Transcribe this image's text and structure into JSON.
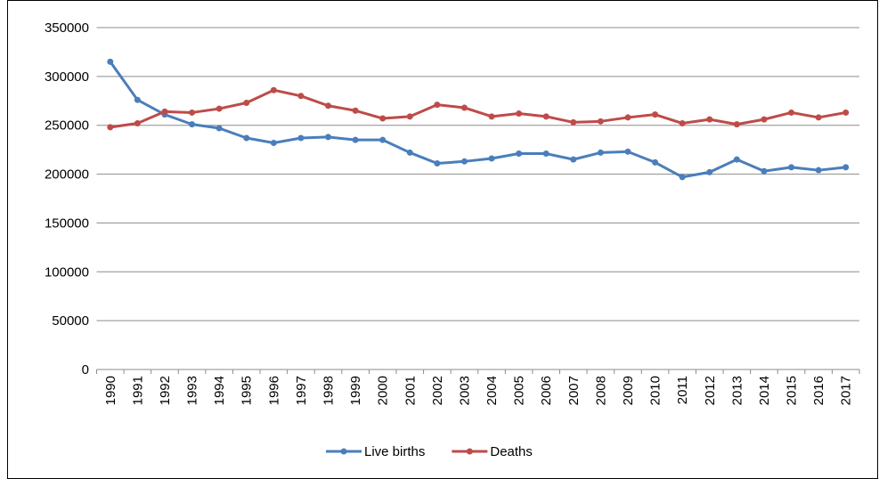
{
  "chart_data": {
    "type": "line",
    "categories": [
      "1990",
      "1991",
      "1992",
      "1993",
      "1994",
      "1995",
      "1996",
      "1997",
      "1998",
      "1999",
      "2000",
      "2001",
      "2002",
      "2003",
      "2004",
      "2005",
      "2006",
      "2007",
      "2008",
      "2009",
      "2010",
      "2011",
      "2012",
      "2013",
      "2014",
      "2015",
      "2016",
      "2017"
    ],
    "series": [
      {
        "name": "Live births",
        "color": "#4a7ebb",
        "values": [
          315000,
          276000,
          261000,
          251000,
          247000,
          237000,
          232000,
          237000,
          238000,
          235000,
          235000,
          222000,
          211000,
          213000,
          216000,
          221000,
          221000,
          215000,
          222000,
          223000,
          212000,
          197000,
          202000,
          215000,
          203000,
          207000,
          204000,
          207000
        ]
      },
      {
        "name": "Deaths",
        "color": "#be4b48",
        "values": [
          248000,
          252000,
          264000,
          263000,
          267000,
          273000,
          286000,
          280000,
          270000,
          265000,
          257000,
          259000,
          271000,
          268000,
          259000,
          262000,
          259000,
          253000,
          254000,
          258000,
          261000,
          252000,
          256000,
          251000,
          256000,
          263000,
          258000,
          263000
        ]
      }
    ],
    "ylim": [
      0,
      350000
    ],
    "yticks": [
      0,
      50000,
      100000,
      150000,
      200000,
      250000,
      300000,
      350000
    ],
    "grid": true,
    "legend": "bottom"
  }
}
